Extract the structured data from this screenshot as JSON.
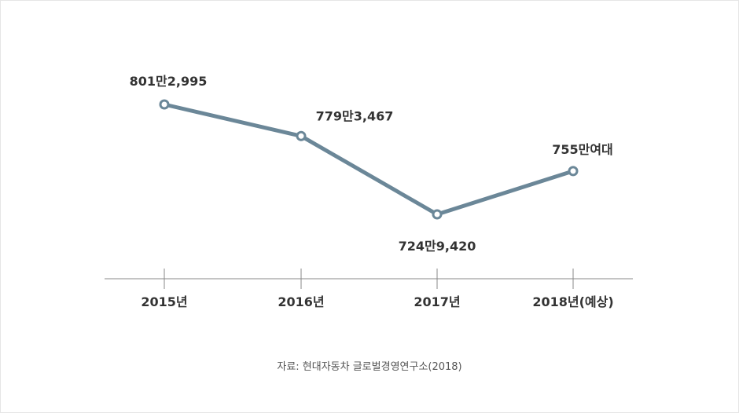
{
  "chart_data": {
    "type": "line",
    "categories": [
      "2015년",
      "2016년",
      "2017년",
      "2018년(예상)"
    ],
    "values": [
      8012995,
      7793467,
      7249420,
      7550000
    ],
    "data_labels": [
      "801만2,995",
      "779만3,467",
      "724만9,420",
      "755만여대"
    ],
    "ylim": [
      7000000,
      8300000
    ],
    "grid": false,
    "legend": "none",
    "title": "",
    "xlabel": "",
    "ylabel": "",
    "line_color": "#6b8798",
    "axis_color": "#888888"
  },
  "source": {
    "text": "자료:  현대자동차 글로벌경영연구소(2018)"
  }
}
